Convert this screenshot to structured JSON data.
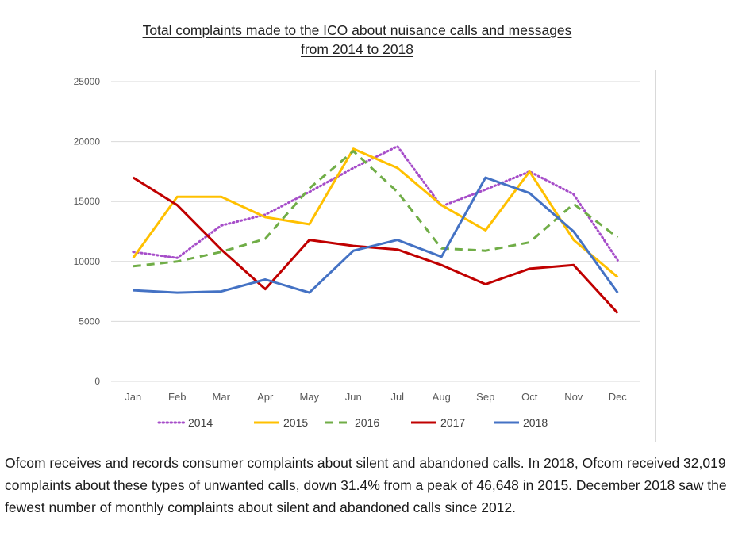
{
  "title_line1": "Total complaints made to the ICO about nuisance calls and messages",
  "title_line2": "from 2014 to 2018",
  "caption": "Ofcom receives and records consumer complaints about silent and abandoned calls. In 2018, Ofcom received 32,019 complaints about these types of unwanted calls, down 31.4% from a peak of 46,648 in 2015. December 2018 saw the fewest number of monthly complaints about silent and abandoned calls since 2012.",
  "chart_data": {
    "type": "line",
    "title": "Total complaints made to the ICO about nuisance calls and messages from 2014 to 2018",
    "xlabel": "",
    "ylabel": "",
    "categories": [
      "Jan",
      "Feb",
      "Mar",
      "Apr",
      "May",
      "Jun",
      "Jul",
      "Aug",
      "Sep",
      "Oct",
      "Nov",
      "Dec"
    ],
    "ylim": [
      0,
      25000
    ],
    "yticks": [
      0,
      5000,
      10000,
      15000,
      20000,
      25000
    ],
    "grid": true,
    "legend_position": "bottom",
    "series": [
      {
        "name": "2014",
        "color": "#a64dc9",
        "style": "dotted",
        "values": [
          10800,
          10300,
          13000,
          13900,
          15800,
          17800,
          19600,
          14600,
          16000,
          17500,
          15600,
          10100
        ]
      },
      {
        "name": "2015",
        "color": "#ffc000",
        "style": "solid",
        "values": [
          10300,
          15400,
          15400,
          13700,
          13100,
          19400,
          17800,
          14700,
          12600,
          17500,
          11800,
          8700
        ]
      },
      {
        "name": "2016",
        "color": "#70ad47",
        "style": "dashed",
        "values": [
          9600,
          10000,
          10800,
          11900,
          16100,
          19200,
          15800,
          11100,
          10900,
          11600,
          14800,
          12000
        ]
      },
      {
        "name": "2017",
        "color": "#c00000",
        "style": "solid",
        "values": [
          17000,
          14700,
          11000,
          7700,
          11800,
          11300,
          11000,
          9700,
          8100,
          9400,
          9700,
          5700
        ]
      },
      {
        "name": "2018",
        "color": "#4472c4",
        "style": "solid",
        "values": [
          7600,
          7400,
          7500,
          8500,
          7400,
          10900,
          11800,
          10400,
          17000,
          15700,
          12500,
          7400
        ]
      }
    ]
  }
}
